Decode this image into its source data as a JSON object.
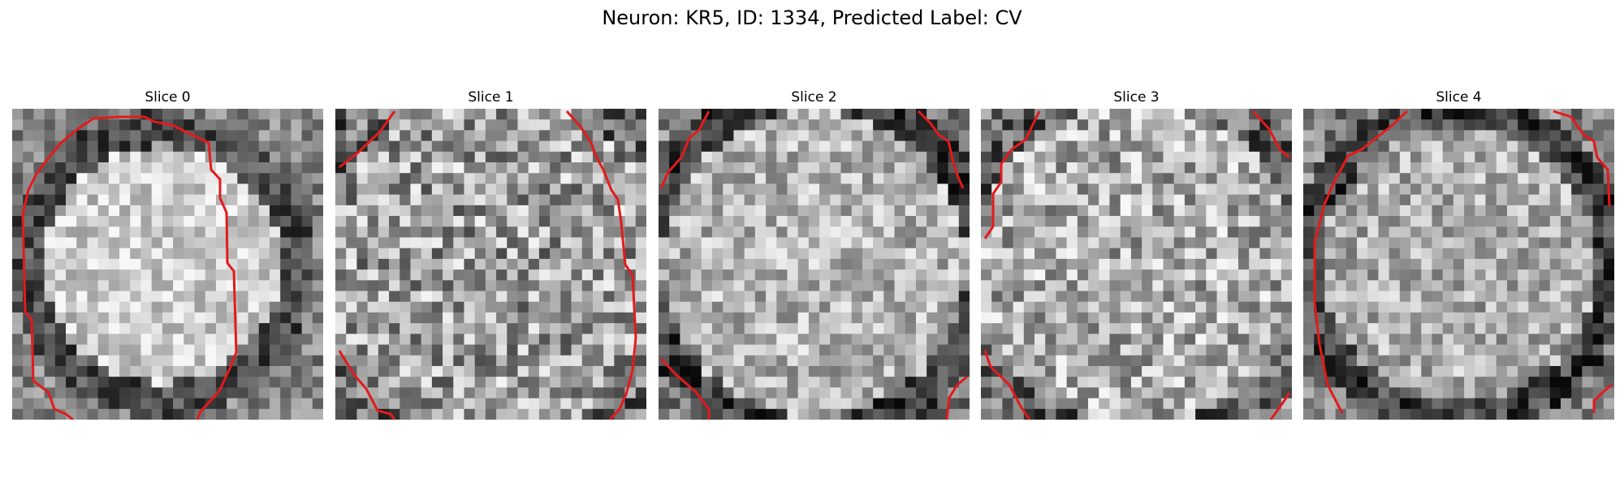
{
  "figure": {
    "title": "Neuron: KR5, ID: 1334, Predicted Label: CV",
    "contour_color": "#e31a1c"
  },
  "panels": [
    {
      "title": "Slice 0"
    },
    {
      "title": "Slice 1"
    },
    {
      "title": "Slice 2"
    },
    {
      "title": "Slice 3"
    },
    {
      "title": "Slice 4"
    }
  ]
}
